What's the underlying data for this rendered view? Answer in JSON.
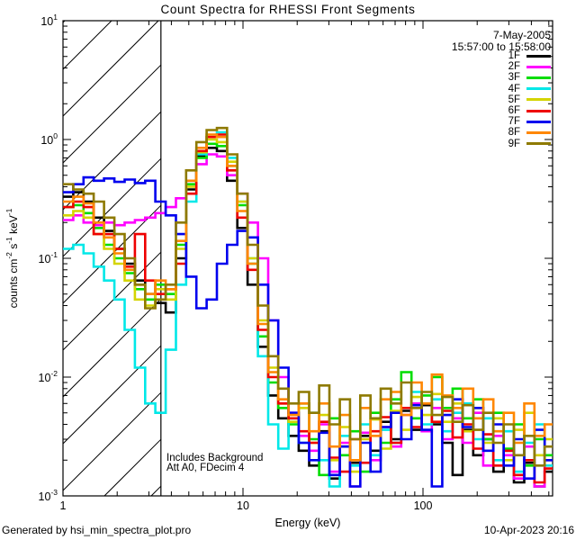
{
  "observation": {
    "date": "7-May-2005",
    "time_range": "15:57:00 to 15:58:00"
  },
  "annotations": {
    "line1": "Includes Background",
    "line2": "Att A0, FDecim 4"
  },
  "footer": {
    "generated_by": "Generated by hsi_min_spectra_plot.pro",
    "timestamp": "10-Apr-2023 20:16"
  },
  "chart_data": {
    "type": "line",
    "mode": "histogram-step",
    "title": "Count Spectra for RHESSI Front Segments",
    "xlabel": "Energy (keV)",
    "ylabel": "counts cm^-2 s^-1 keV^-1",
    "ylabel_segments": [
      {
        "t": "counts cm"
      },
      {
        "t": "-2",
        "sup": true
      },
      {
        "t": " s"
      },
      {
        "t": "-1",
        "sup": true
      },
      {
        "t": " keV"
      },
      {
        "t": "-1",
        "sup": true
      }
    ],
    "xscale": "log",
    "yscale": "log",
    "xlim": [
      1,
      525
    ],
    "ylim": [
      0.001,
      10
    ],
    "grid": false,
    "legend_position": "top-right-inside",
    "x_ticks": [
      {
        "label": "1",
        "value": 1
      },
      {
        "label": "10",
        "value": 10
      },
      {
        "label": "100",
        "value": 100
      }
    ],
    "y_ticks": [
      {
        "base": "10",
        "exp": "1",
        "value": 10
      },
      {
        "base": "10",
        "exp": "0",
        "value": 1
      },
      {
        "base": "10",
        "exp": "-1",
        "value": 0.1
      },
      {
        "base": "10",
        "exp": "-2",
        "value": 0.01
      },
      {
        "base": "10",
        "exp": "-3",
        "value": 0.001
      }
    ],
    "hatched_region": {
      "x_start_keV": 1,
      "x_end_keV": 3.5
    },
    "energies_keV": [
      1.0,
      1.14,
      1.3,
      1.48,
      1.69,
      1.93,
      2.2,
      2.51,
      2.86,
      3.26,
      3.72,
      4.24,
      4.83,
      5.51,
      6.28,
      7.16,
      8.16,
      9.3,
      10.6,
      12.1,
      13.8,
      15.7,
      17.9,
      20.4,
      23.3,
      26.5,
      30.2,
      34.5,
      39.3,
      44.8,
      51.1,
      58.2,
      66.4,
      75.7,
      86.3,
      98.4,
      112,
      128,
      146,
      166,
      190,
      216,
      246,
      281,
      320,
      365,
      416,
      474,
      540
    ],
    "series": [
      {
        "name": "1F",
        "color": "#000000",
        "values": [
          0.33,
          0.36,
          0.3,
          0.22,
          0.17,
          0.12,
          0.09,
          0.065,
          0.05,
          0.042,
          0.035,
          0.1,
          0.38,
          0.72,
          0.85,
          0.8,
          0.45,
          0.18,
          0.06,
          0.018,
          0.007,
          0.0045,
          0.0032,
          0.0024,
          0.0018,
          0.0035,
          0.0014,
          0.0026,
          0.0019,
          0.0032,
          0.0024,
          0.0042,
          0.003,
          0.0052,
          0.0036,
          0.0058,
          0.004,
          0.0028,
          0.0015,
          0.0036,
          0.0022,
          0.003,
          0.0016,
          0.0024,
          0.0013,
          0.0019,
          0.0012,
          0.0016,
          0.0011
        ]
      },
      {
        "name": "2F",
        "color": "#ff00ff",
        "values": [
          0.21,
          0.23,
          0.2,
          0.19,
          0.2,
          0.19,
          0.2,
          0.21,
          0.22,
          0.24,
          0.27,
          0.32,
          0.45,
          0.62,
          0.75,
          0.72,
          0.5,
          0.35,
          0.2,
          0.1,
          0.03,
          0.01,
          0.005,
          0.0032,
          0.0024,
          0.004,
          0.0016,
          0.0028,
          0.0012,
          0.0034,
          0.002,
          0.0038,
          0.0026,
          0.0048,
          0.006,
          0.0035,
          0.0055,
          0.003,
          0.0045,
          0.0028,
          0.005,
          0.0018,
          0.0032,
          0.0022,
          0.0014,
          0.0026,
          0.0012,
          0.002,
          0.0038
        ]
      },
      {
        "name": "3F",
        "color": "#00dd00",
        "values": [
          0.27,
          0.28,
          0.24,
          0.18,
          0.13,
          0.1,
          0.075,
          0.055,
          0.045,
          0.06,
          0.05,
          0.13,
          0.42,
          0.7,
          0.92,
          0.88,
          0.6,
          0.28,
          0.09,
          0.022,
          0.009,
          0.0055,
          0.004,
          0.006,
          0.003,
          0.0015,
          0.0045,
          0.0022,
          0.0035,
          0.0016,
          0.005,
          0.0028,
          0.0065,
          0.011,
          0.0045,
          0.007,
          0.01,
          0.0055,
          0.008,
          0.0045,
          0.0065,
          0.003,
          0.005,
          0.0025,
          0.004,
          0.0018,
          0.003,
          0.0022,
          0.0015
        ]
      },
      {
        "name": "4F",
        "color": "#00e8e8",
        "values": [
          0.12,
          0.13,
          0.11,
          0.085,
          0.065,
          0.045,
          0.025,
          0.012,
          0.006,
          0.005,
          0.017,
          0.06,
          0.3,
          0.75,
          1.05,
          1.15,
          0.7,
          0.3,
          0.1,
          0.015,
          0.004,
          0.0025,
          0.0045,
          0.0028,
          0.005,
          0.002,
          0.0012,
          0.0032,
          0.0018,
          0.004,
          0.0022,
          0.0036,
          0.0028,
          0.0055,
          0.0075,
          0.004,
          0.0065,
          0.0035,
          0.005,
          0.006,
          0.003,
          0.0045,
          0.002,
          0.0035,
          0.0016,
          0.0028,
          0.004,
          0.0018,
          0.0024
        ]
      },
      {
        "name": "5F",
        "color": "#d4d400",
        "values": [
          0.23,
          0.25,
          0.22,
          0.16,
          0.12,
          0.09,
          0.065,
          0.045,
          0.04,
          0.055,
          0.045,
          0.12,
          0.4,
          0.78,
          1.0,
          0.95,
          0.65,
          0.3,
          0.1,
          0.03,
          0.012,
          0.006,
          0.0042,
          0.0055,
          0.0028,
          0.0048,
          0.002,
          0.0038,
          0.0016,
          0.003,
          0.0044,
          0.0025,
          0.0052,
          0.0036,
          0.0068,
          0.0048,
          0.0072,
          0.0042,
          0.006,
          0.0035,
          0.0055,
          0.0028,
          0.0045,
          0.002,
          0.0036,
          0.005,
          0.0022,
          0.003,
          0.0016
        ]
      },
      {
        "name": "6F",
        "color": "#ee0000",
        "values": [
          0.27,
          0.3,
          0.27,
          0.16,
          0.16,
          0.12,
          0.085,
          0.16,
          0.065,
          0.05,
          0.055,
          0.09,
          0.35,
          0.8,
          1.05,
          1.1,
          0.55,
          0.22,
          0.08,
          0.025,
          0.01,
          0.006,
          0.0045,
          0.0035,
          0.0028,
          0.0042,
          0.0021,
          0.0016,
          0.003,
          0.0019,
          0.0035,
          0.0046,
          0.0028,
          0.0055,
          0.0038,
          0.006,
          0.0042,
          0.0052,
          0.0031,
          0.004,
          0.0025,
          0.0033,
          0.0018,
          0.0024,
          0.0015,
          0.002,
          0.0013,
          0.0017,
          0.0012
        ]
      },
      {
        "name": "7F",
        "color": "#0000ee",
        "values": [
          0.36,
          0.42,
          0.48,
          0.45,
          0.47,
          0.44,
          0.46,
          0.43,
          0.45,
          0.3,
          0.23,
          0.16,
          0.07,
          0.038,
          0.045,
          0.09,
          0.13,
          0.17,
          0.15,
          0.06,
          0.03,
          0.012,
          0.005,
          0.0028,
          0.002,
          0.0034,
          0.0015,
          0.0026,
          0.0012,
          0.0028,
          0.0016,
          0.0038,
          0.005,
          0.003,
          0.0058,
          0.0036,
          0.0012,
          0.0048,
          0.0065,
          0.0038,
          0.0055,
          0.0024,
          0.004,
          0.0018,
          0.003,
          0.0014,
          0.0036,
          0.002,
          0.0025
        ]
      },
      {
        "name": "8F",
        "color": "#ff8700",
        "values": [
          0.3,
          0.33,
          0.29,
          0.2,
          0.15,
          0.11,
          0.08,
          0.06,
          0.05,
          0.065,
          0.055,
          0.14,
          0.45,
          0.85,
          1.1,
          1.05,
          0.6,
          0.25,
          0.09,
          0.028,
          0.011,
          0.0065,
          0.0048,
          0.006,
          0.0035,
          0.006,
          0.0026,
          0.0048,
          0.002,
          0.0055,
          0.0032,
          0.0065,
          0.0075,
          0.0048,
          0.009,
          0.006,
          0.0105,
          0.007,
          0.0055,
          0.008,
          0.0045,
          0.0065,
          0.0035,
          0.005,
          0.0028,
          0.006,
          0.0032,
          0.004,
          0.0022
        ]
      },
      {
        "name": "9F",
        "color": "#8e7a00",
        "values": [
          0.42,
          0.38,
          0.35,
          0.3,
          0.22,
          0.16,
          0.1,
          0.06,
          0.038,
          0.045,
          0.06,
          0.2,
          0.55,
          0.95,
          1.2,
          1.25,
          0.75,
          0.35,
          0.13,
          0.04,
          0.015,
          0.008,
          0.006,
          0.0075,
          0.005,
          0.0085,
          0.004,
          0.0065,
          0.003,
          0.007,
          0.0045,
          0.008,
          0.006,
          0.009,
          0.0055,
          0.0075,
          0.0048,
          0.0068,
          0.0042,
          0.0058,
          0.0036,
          0.005,
          0.0028,
          0.004,
          0.0022,
          0.0032,
          0.0018,
          0.0026,
          0.0015
        ]
      }
    ]
  }
}
